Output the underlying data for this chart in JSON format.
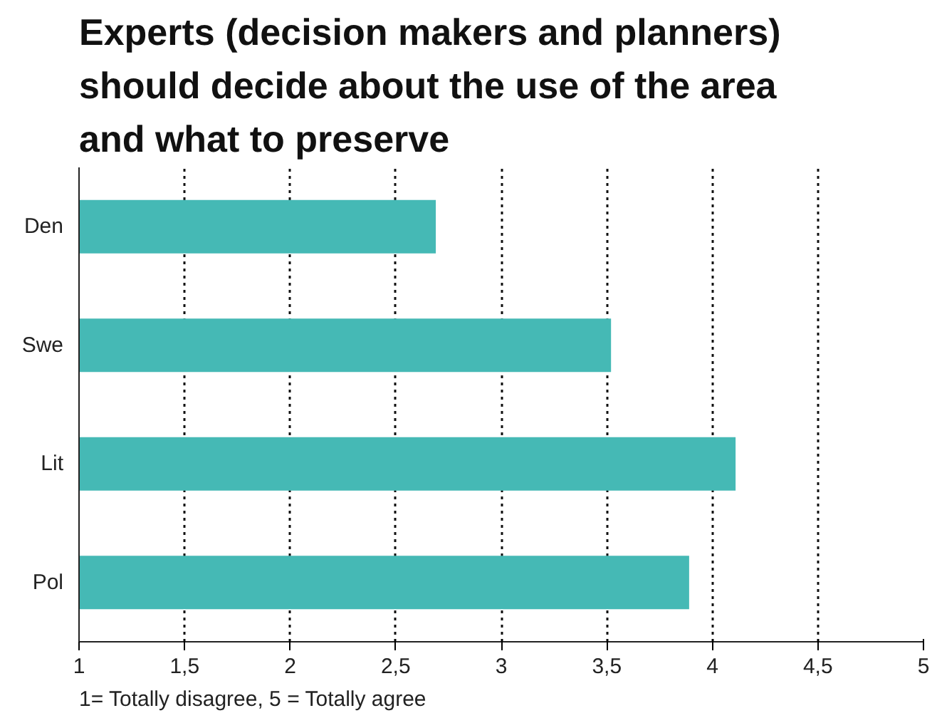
{
  "chart_data": {
    "type": "bar",
    "orientation": "horizontal",
    "title": "Experts (decision makers and planners)\nshould decide about the use of the area\nand what to preserve",
    "categories": [
      "Den",
      "Swe",
      "Lit",
      "Pol"
    ],
    "values": [
      2.69,
      3.52,
      4.11,
      3.89
    ],
    "color": "#45b9b5",
    "xlim": [
      1,
      5
    ],
    "xticks": [
      1,
      {
        "value": 1.5,
        "label": "1,5"
      },
      2,
      {
        "value": 2.5,
        "label": "2,5"
      },
      3,
      {
        "value": 3.5,
        "label": "3,5"
      },
      4,
      {
        "value": 4.5,
        "label": "4,5"
      },
      5
    ],
    "grid": "x",
    "annotations": [
      "1= Totally disagree, 5 = Totally agree"
    ]
  }
}
